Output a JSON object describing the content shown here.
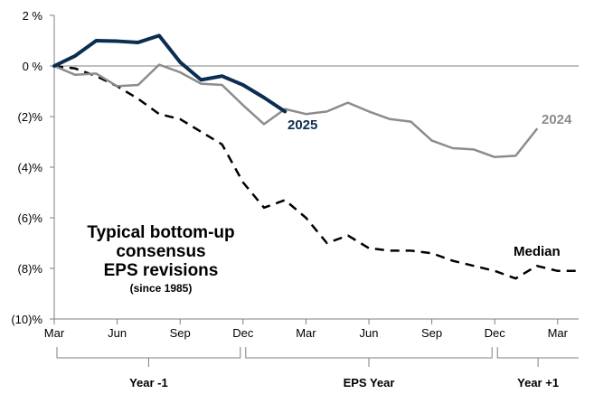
{
  "chart_data": {
    "type": "line",
    "ylim": [
      -10,
      2
    ],
    "y_ticks": [
      {
        "value": 2,
        "label": "2 %"
      },
      {
        "value": 0,
        "label": "0 %"
      },
      {
        "value": -2,
        "label": "(2)%"
      },
      {
        "value": -4,
        "label": "(4)%"
      },
      {
        "value": -6,
        "label": "(6)%"
      },
      {
        "value": -8,
        "label": "(8)%"
      },
      {
        "value": -10,
        "label": "(10)%"
      }
    ],
    "x_range": [
      0,
      25
    ],
    "x_ticks": [
      {
        "value": 0,
        "label": "Mar"
      },
      {
        "value": 3,
        "label": "Jun"
      },
      {
        "value": 6,
        "label": "Sep"
      },
      {
        "value": 9,
        "label": "Dec"
      },
      {
        "value": 12,
        "label": "Mar"
      },
      {
        "value": 15,
        "label": "Jun"
      },
      {
        "value": 18,
        "label": "Sep"
      },
      {
        "value": 21,
        "label": "Dec"
      },
      {
        "value": 24,
        "label": "Mar"
      }
    ],
    "period_groups": [
      {
        "label": "Year -1",
        "start": 0,
        "end": 9
      },
      {
        "label": "EPS Year",
        "start": 9,
        "end": 21
      },
      {
        "label": "Year +1",
        "start": 21,
        "end": 25
      }
    ],
    "series": [
      {
        "name": "Median",
        "label": "Median",
        "color": "#000000",
        "style": "dashed",
        "x": [
          0,
          1,
          2,
          3,
          4,
          5,
          6,
          7,
          8,
          9,
          10,
          11,
          12,
          13,
          14,
          15,
          16,
          17,
          18,
          19,
          20,
          21,
          22,
          23,
          24,
          25
        ],
        "values": [
          0,
          -0.1,
          -0.4,
          -0.8,
          -1.3,
          -1.9,
          -2.1,
          -2.6,
          -3.1,
          -4.6,
          -5.6,
          -5.3,
          -6.0,
          -7.0,
          -6.7,
          -7.2,
          -7.3,
          -7.3,
          -7.4,
          -7.7,
          -7.9,
          -8.1,
          -8.4,
          -7.9,
          -8.1,
          -8.1
        ]
      },
      {
        "name": "2024",
        "label": "2024",
        "color": "#8c8c8c",
        "style": "solid",
        "x": [
          0,
          1,
          2,
          3,
          4,
          5,
          6,
          7,
          8,
          9,
          10,
          11,
          12,
          13,
          14,
          15,
          16,
          17,
          18,
          19,
          20,
          21,
          22,
          23
        ],
        "values": [
          0,
          -0.35,
          -0.3,
          -0.8,
          -0.75,
          0.05,
          -0.25,
          -0.7,
          -0.75,
          -1.55,
          -2.3,
          -1.7,
          -1.9,
          -1.8,
          -1.45,
          -1.8,
          -2.1,
          -2.2,
          -2.95,
          -3.25,
          -3.3,
          -3.6,
          -3.55,
          -2.5
        ]
      },
      {
        "name": "2025",
        "label": "2025",
        "color": "#0b2d52",
        "style": "solid",
        "x": [
          0,
          1,
          2,
          3,
          4,
          5,
          6,
          7,
          8,
          9,
          10,
          11
        ],
        "values": [
          0,
          0.4,
          1.0,
          0.98,
          0.93,
          1.2,
          0.15,
          -0.55,
          -0.4,
          -0.75,
          -1.25,
          -1.8
        ]
      }
    ],
    "annotation": {
      "lines": [
        "Typical bottom-up",
        "consensus",
        "EPS revisions"
      ],
      "subline": "(since 1985)"
    },
    "title": "",
    "xlabel": "",
    "ylabel": "",
    "grid": false
  }
}
